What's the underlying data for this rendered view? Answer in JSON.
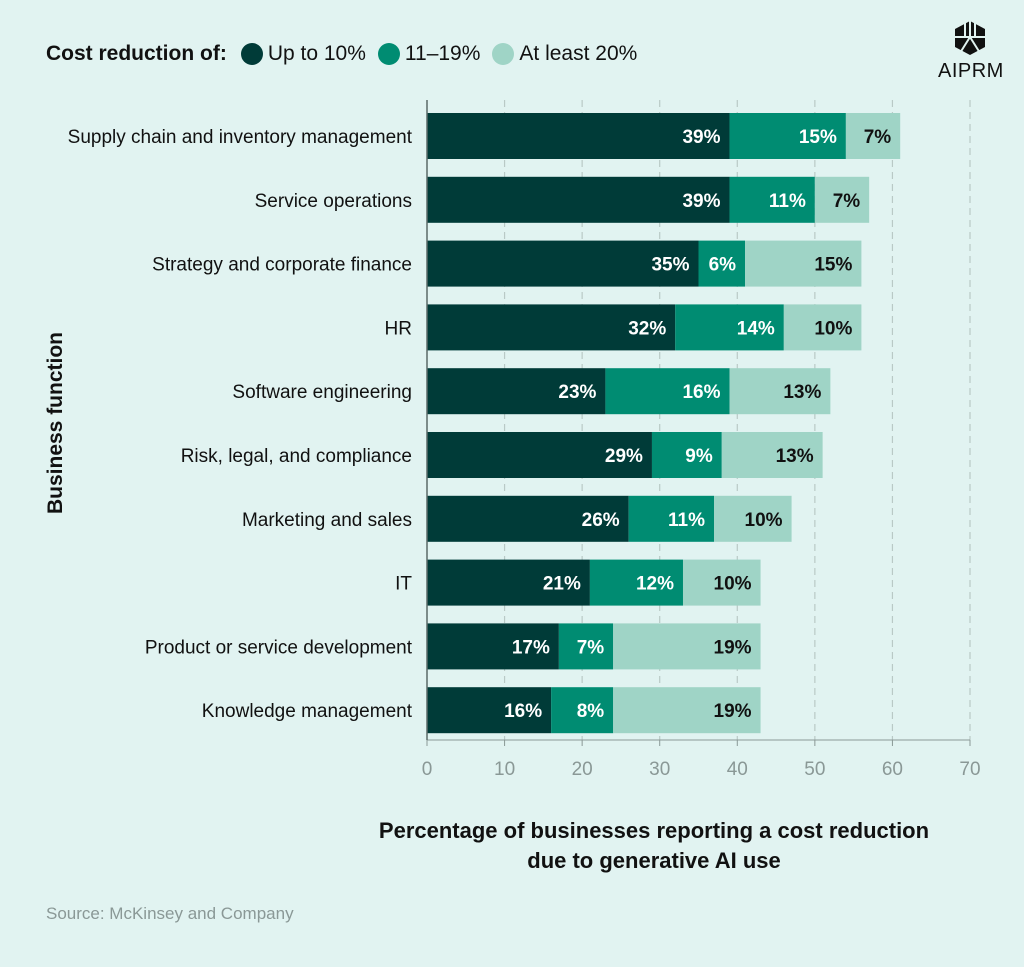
{
  "chart_data": {
    "type": "bar",
    "orientation": "horizontal",
    "stacked": true,
    "legend_title": "Cost reduction of:",
    "xlabel": "Percentage of businesses reporting a cost reduction due to generative AI use",
    "ylabel": "Business function",
    "xlim": [
      0,
      70
    ],
    "xticks": [
      0,
      10,
      20,
      30,
      40,
      50,
      60,
      70
    ],
    "grid": "vertical dashed",
    "legend_placement": "top-left",
    "categories": [
      "Supply chain and inventory management",
      "Service operations",
      "Strategy and corporate finance",
      "HR",
      "Software engineering",
      "Risk, legal, and compliance",
      "Marketing and sales",
      "IT",
      "Product or service development",
      "Knowledge management"
    ],
    "series": [
      {
        "name": "Up to 10%",
        "color": "#003b38",
        "values": [
          39,
          39,
          35,
          32,
          23,
          29,
          26,
          21,
          17,
          16
        ]
      },
      {
        "name": "11–19%",
        "color": "#008c72",
        "values": [
          15,
          11,
          6,
          14,
          16,
          9,
          11,
          12,
          7,
          8
        ]
      },
      {
        "name": "At least 20%",
        "color": "#9fd4c6",
        "values": [
          7,
          7,
          15,
          10,
          13,
          13,
          10,
          10,
          19,
          19
        ]
      }
    ]
  },
  "source": "Source: McKinsey and Company",
  "logo": {
    "text": "AIPRM",
    "icon": "aiprm-logo-icon"
  }
}
